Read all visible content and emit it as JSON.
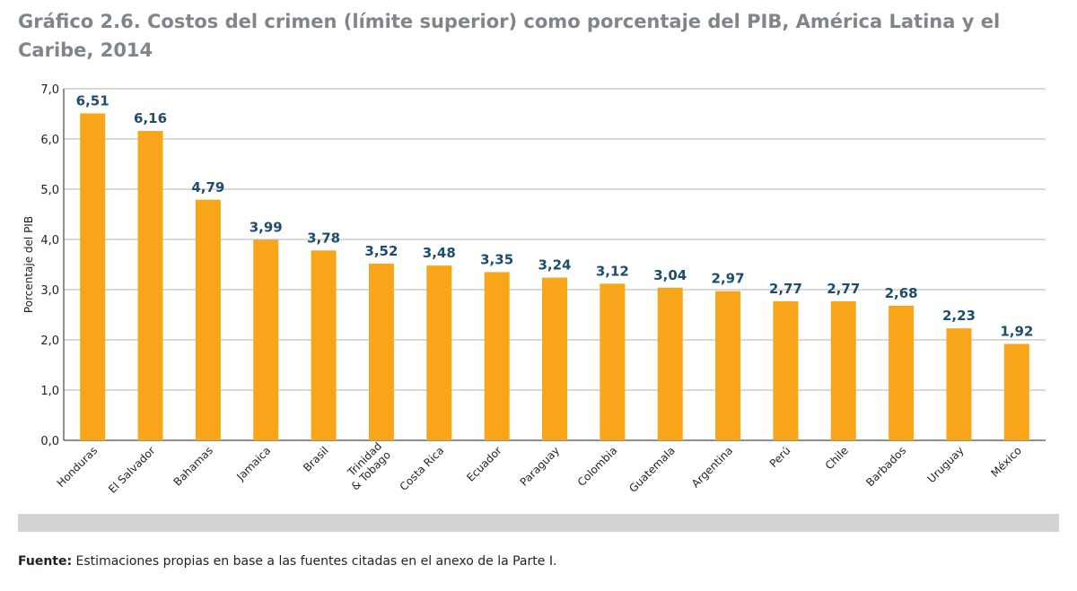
{
  "title": "Gráfico 2.6. Costos del crimen (límite superior) como porcentaje del PIB, América Latina y el Caribe, 2014",
  "source": {
    "label": "Fuente:",
    "text": " Estimaciones propias en base a las fuentes citadas en el anexo de la Parte I."
  },
  "colors": {
    "bar": "#f9a51a",
    "value_label": "#1e4d6b",
    "grid": "#b3b3b3",
    "band": "#d1d3d4",
    "title": "#7f8589"
  },
  "chart_data": {
    "type": "bar",
    "ylabel": "Porcentaje del PIB",
    "ylim": [
      0,
      7
    ],
    "grid": true,
    "yticks": [
      "0,0",
      "1,0",
      "2,0",
      "3,0",
      "4,0",
      "5,0",
      "6,0",
      "7,0"
    ],
    "categories": [
      [
        "Honduras"
      ],
      [
        "El Salvador"
      ],
      [
        "Bahamas"
      ],
      [
        "Jamaica"
      ],
      [
        "Brasil"
      ],
      [
        "Trinidad",
        "& Tobago"
      ],
      [
        "Costa Rica"
      ],
      [
        "Ecuador"
      ],
      [
        "Paraguay"
      ],
      [
        "Colombia"
      ],
      [
        "Guatemala"
      ],
      [
        "Argentina"
      ],
      [
        "Perú"
      ],
      [
        "Chile"
      ],
      [
        "Barbados"
      ],
      [
        "Uruguay"
      ],
      [
        "México"
      ]
    ],
    "values": [
      6.51,
      6.16,
      4.79,
      3.99,
      3.78,
      3.52,
      3.48,
      3.35,
      3.24,
      3.12,
      3.04,
      2.97,
      2.77,
      2.77,
      2.68,
      2.23,
      1.92
    ],
    "value_labels": [
      "6,51",
      "6,16",
      "4,79",
      "3,99",
      "3,78",
      "3,52",
      "3,48",
      "3,35",
      "3,24",
      "3,12",
      "3,04",
      "2,97",
      "2,77",
      "2,77",
      "2,68",
      "2,23",
      "1,92"
    ]
  }
}
